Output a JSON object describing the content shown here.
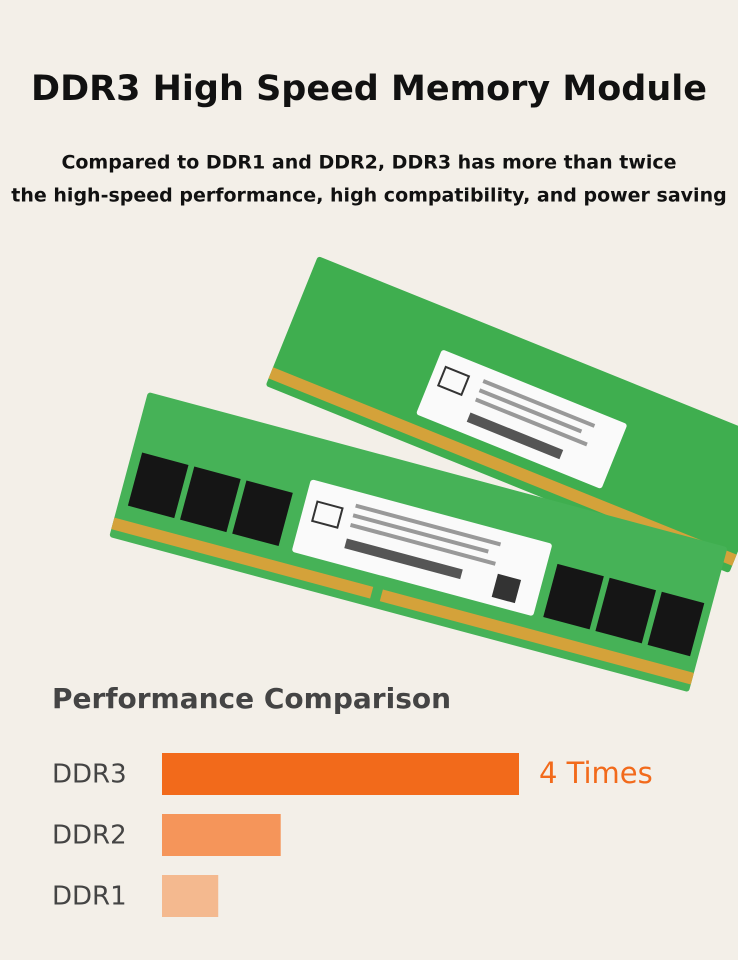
{
  "header": {
    "title": "DDR3 High Speed Memory Module",
    "subtitle": [
      "Compared to DDR1 and DDR2, DDR3 has more than twice",
      "the high-speed performance, high compatibility, and power saving"
    ]
  },
  "chart_data": {
    "type": "bar",
    "orientation": "horizontal",
    "title": "Performance Comparison",
    "categories": [
      "DDR3",
      "DDR2",
      "DDR1"
    ],
    "values": [
      4,
      1.33,
      0.63
    ],
    "value_labels": [
      "4 Times",
      null,
      null
    ],
    "colors": [
      "#f26a1b",
      "#f5955a",
      "#f4b98f"
    ]
  }
}
